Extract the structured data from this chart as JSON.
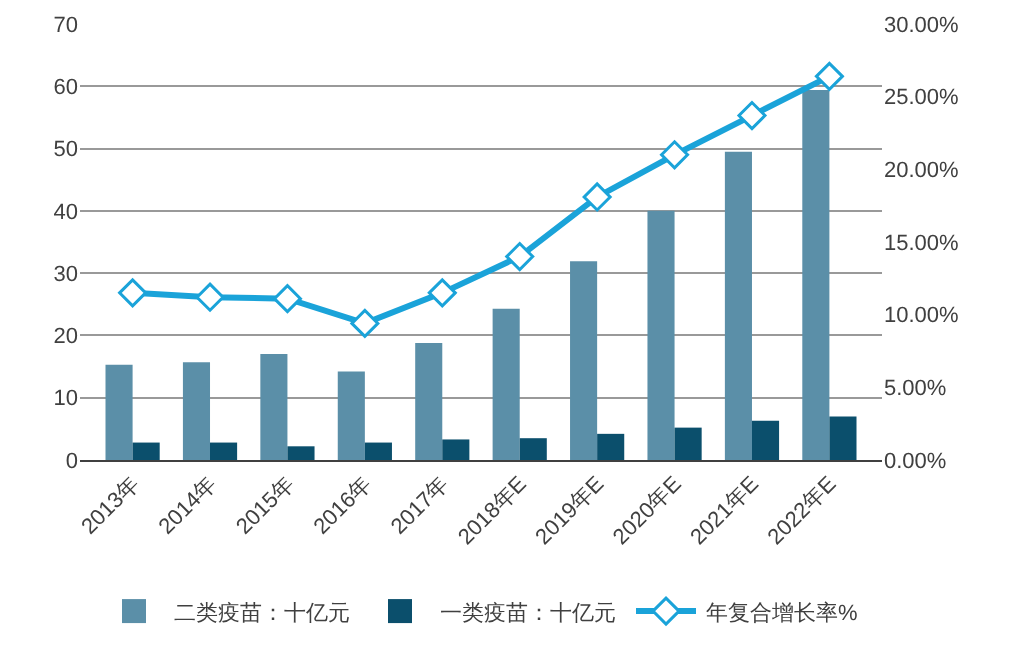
{
  "chart_data": {
    "type": "bar",
    "categories": [
      "2013年",
      "2014年",
      "2015年",
      "2016年",
      "2017年",
      "2018年E",
      "2019年E",
      "2020年E",
      "2021年E",
      "2022年E"
    ],
    "series": [
      {
        "name": "二类疫苗：十亿元",
        "color": "#5b8fa8",
        "values": [
          15.3,
          15.7,
          17.0,
          14.2,
          18.8,
          24.3,
          31.9,
          40.0,
          49.5,
          59.4
        ]
      },
      {
        "name": "一类疫苗：十亿元",
        "color": "#0b4f6c",
        "values": [
          2.8,
          2.8,
          2.2,
          2.8,
          3.3,
          3.5,
          4.2,
          5.2,
          6.3,
          7.0
        ]
      },
      {
        "name": "年复合增长率%",
        "color": "#1aa3d9",
        "type": "line",
        "axis": "y2",
        "marker": "diamond",
        "values": [
          11.5,
          11.2,
          11.1,
          9.4,
          11.5,
          14.0,
          18.1,
          21.0,
          23.7,
          26.4
        ]
      }
    ],
    "ylim": [
      0,
      70
    ],
    "yticks": [
      0,
      10,
      20,
      30,
      40,
      50,
      60,
      70
    ],
    "y2lim": [
      0,
      30
    ],
    "y2ticks": [
      {
        "value": 0,
        "label": "0.00%"
      },
      {
        "value": 5,
        "label": "5.00%"
      },
      {
        "value": 10,
        "label": "10.00%"
      },
      {
        "value": 15,
        "label": "15.00%"
      },
      {
        "value": 20,
        "label": "20.00%"
      },
      {
        "value": 25,
        "label": "25.00%"
      },
      {
        "value": 30,
        "label": "30.00%"
      }
    ],
    "grid": "y",
    "legend": "bottom"
  }
}
